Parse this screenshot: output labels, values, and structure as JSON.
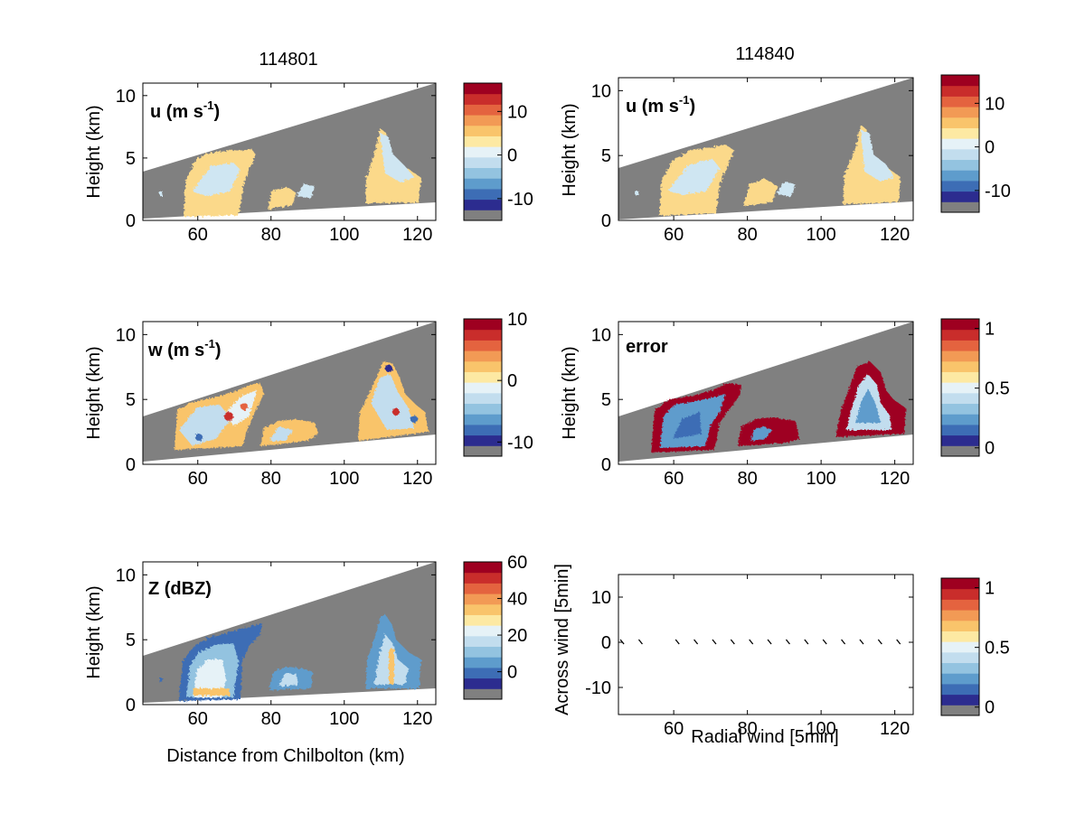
{
  "colors": {
    "background": "#ffffff",
    "mask_gray": "#808080",
    "palette": [
      "#2c2c8f",
      "#3d6db5",
      "#5e9ccc",
      "#93c3e0",
      "#c2ddee",
      "#e6f2f7",
      "#fde9a3",
      "#f9c46b",
      "#f29a55",
      "#e4633f",
      "#c92d2b",
      "#9e0020"
    ],
    "u_fill": "#fbd98a",
    "u_fill_light": "#cfe6f2"
  },
  "columns": [
    {
      "title": "114801"
    },
    {
      "title": "114840"
    }
  ],
  "chart_data": [
    {
      "id": "u-left",
      "type": "heatmap",
      "annotation": "u (m s-1)",
      "ylabel": "Height (km)",
      "xticks": [
        "60",
        "80",
        "100",
        "120"
      ],
      "yticks": [
        "0",
        "5",
        "10"
      ],
      "xlim": [
        45,
        125
      ],
      "ylim": [
        0,
        11
      ],
      "colorbar": {
        "ticks": [
          "10",
          "0",
          "-10"
        ],
        "tick_values": [
          10,
          0,
          -10
        ],
        "range": [
          -15,
          16.5
        ]
      }
    },
    {
      "id": "u-right",
      "type": "heatmap",
      "annotation": "u (m s-1)",
      "ylabel": "Height (km)",
      "xticks": [
        "60",
        "80",
        "100",
        "120"
      ],
      "yticks": [
        "0",
        "5",
        "10"
      ],
      "xlim": [
        45,
        125
      ],
      "ylim": [
        0,
        11
      ],
      "colorbar": {
        "ticks": [
          "10",
          "0",
          "-10"
        ],
        "tick_values": [
          10,
          0,
          -10
        ],
        "range": [
          -15,
          16.5
        ]
      }
    },
    {
      "id": "w-left",
      "type": "heatmap",
      "annotation": "w (m s-1)",
      "ylabel": "Height (km)",
      "xticks": [
        "60",
        "80",
        "100",
        "120"
      ],
      "yticks": [
        "0",
        "5",
        "10"
      ],
      "xlim": [
        45,
        125
      ],
      "ylim": [
        0,
        11
      ],
      "colorbar": {
        "ticks": [
          "10",
          "0",
          "-10"
        ],
        "tick_values": [
          10,
          0,
          -10
        ],
        "range": [
          -12.3,
          10
        ]
      }
    },
    {
      "id": "error-right",
      "type": "heatmap",
      "annotation": "error",
      "ylabel": "Height (km)",
      "xticks": [
        "60",
        "80",
        "100",
        "120"
      ],
      "yticks": [
        "0",
        "5",
        "10"
      ],
      "xlim": [
        45,
        125
      ],
      "ylim": [
        0,
        11
      ],
      "colorbar": {
        "ticks": [
          "1",
          "0.5",
          "0"
        ],
        "tick_values": [
          1,
          0.5,
          0
        ],
        "range": [
          -0.07,
          1.08
        ]
      }
    },
    {
      "id": "z-left",
      "type": "heatmap",
      "annotation": "Z (dBZ)",
      "ylabel": "Height (km)",
      "xlabel": "Distance from Chilbolton (km)",
      "xticks": [
        "60",
        "80",
        "100",
        "120"
      ],
      "yticks": [
        "0",
        "5",
        "10"
      ],
      "xlim": [
        45,
        125
      ],
      "ylim": [
        0,
        11
      ],
      "colorbar": {
        "ticks": [
          "60",
          "40",
          "20",
          "0"
        ],
        "tick_values": [
          60,
          40,
          20,
          0
        ],
        "range": [
          -15,
          60
        ]
      }
    },
    {
      "id": "wind-right",
      "type": "scatter",
      "xlabel": "Radial wind [5min]",
      "ylabel": "Across wind [5min]",
      "xticks": [
        "60",
        "80",
        "100",
        "120"
      ],
      "yticks": [
        "10",
        "0",
        "-10"
      ],
      "xlim": [
        45,
        125
      ],
      "ylim": [
        -16,
        15
      ],
      "x": [
        46,
        51,
        61,
        66,
        71,
        76,
        81,
        86,
        91,
        96,
        101,
        106,
        111,
        116,
        121
      ],
      "y": [
        0,
        0,
        0,
        0,
        0,
        0,
        0,
        0,
        0,
        0,
        0,
        0,
        0,
        0,
        0
      ],
      "colorbar": {
        "ticks": [
          "1",
          "0.5",
          "0"
        ],
        "tick_values": [
          1,
          0.5,
          0
        ],
        "range": [
          -0.07,
          1.08
        ]
      }
    }
  ]
}
